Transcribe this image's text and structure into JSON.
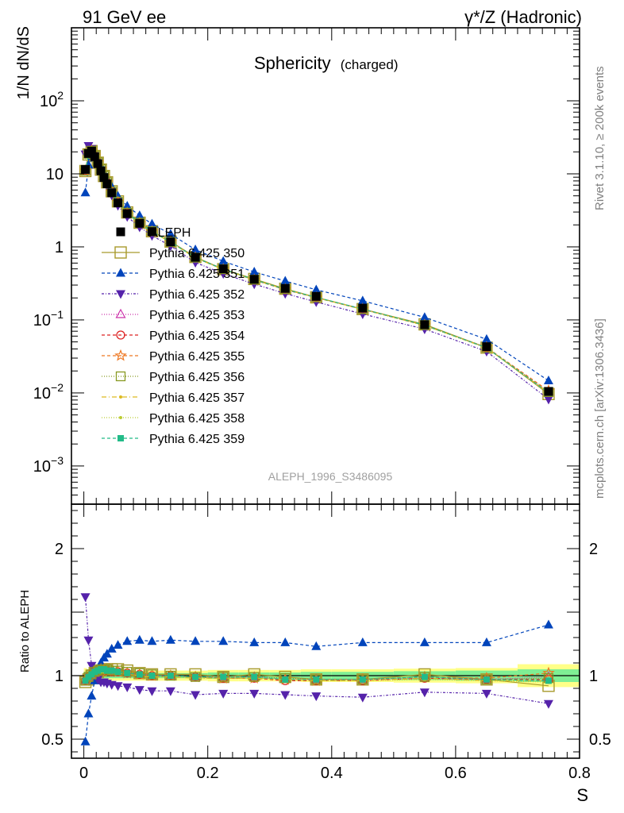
{
  "header": {
    "left": "91 GeV ee",
    "right": "γ*/Z (Hadronic)"
  },
  "side": {
    "rivet": "Rivet 3.1.10, ≥ 200k events",
    "mcplots": "mcplots.cern.ch [arXiv:1306.3436]"
  },
  "chart_data": [
    {
      "type": "scatter",
      "title": "Sphericity",
      "title_suffix": "(charged)",
      "ylabel": "1/N dN/dS",
      "xlabel": "S",
      "watermark": "ALEPH_1996_S3486095",
      "xlim": [
        -0.02,
        0.8
      ],
      "ylim": [
        0.0003,
        1000
      ],
      "y_scale": "log",
      "y_ticks": [
        {
          "value": 0.001,
          "label": "10^-3"
        },
        {
          "value": 0.01,
          "label": "10^-2"
        },
        {
          "value": 0.1,
          "label": "10^-1"
        },
        {
          "value": 1,
          "label": "1"
        },
        {
          "value": 10,
          "label": "10"
        },
        {
          "value": 100,
          "label": "10^2"
        }
      ],
      "legend_position": "middle-left",
      "x": [
        0.0025,
        0.0075,
        0.0125,
        0.0175,
        0.0225,
        0.0275,
        0.0325,
        0.0375,
        0.045,
        0.055,
        0.07,
        0.09,
        0.11,
        0.14,
        0.18,
        0.225,
        0.275,
        0.325,
        0.375,
        0.45,
        0.55,
        0.65,
        0.75
      ],
      "series": [
        {
          "name": "ALEPH",
          "color": "#000000",
          "marker": "square-filled",
          "dash": "",
          "values": [
            11.5,
            19.0,
            20.5,
            17.2,
            13.8,
            11.0,
            8.9,
            7.3,
            5.5,
            4.0,
            2.85,
            2.1,
            1.62,
            1.17,
            0.72,
            0.5,
            0.36,
            0.27,
            0.21,
            0.145,
            0.086,
            0.043,
            0.0105
          ]
        },
        {
          "name": "Pythia 6.425 350",
          "color": "#a89a2c",
          "marker": "square-open-big",
          "dash": "",
          "ratio": [
            0.95,
            0.97,
            1.0,
            1.02,
            1.03,
            1.04,
            1.05,
            1.05,
            1.05,
            1.05,
            1.04,
            1.02,
            1.01,
            1.01,
            1.01,
            0.99,
            1.01,
            0.99,
            0.97,
            0.97,
            1.01,
            0.97,
            0.92
          ]
        },
        {
          "name": "Pythia 6.425 351",
          "color": "#0044bb",
          "marker": "triangle-up-filled",
          "dash": "4,3",
          "ratio": [
            0.48,
            0.7,
            0.84,
            0.96,
            1.05,
            1.1,
            1.14,
            1.17,
            1.21,
            1.24,
            1.27,
            1.28,
            1.27,
            1.28,
            1.27,
            1.27,
            1.26,
            1.26,
            1.23,
            1.26,
            1.26,
            1.26,
            1.4
          ]
        },
        {
          "name": "Pythia 6.425 352",
          "color": "#5522aa",
          "marker": "triangle-down-filled",
          "dash": "3,2,1,2",
          "ratio": [
            1.62,
            1.28,
            1.08,
            1.01,
            0.97,
            0.95,
            0.95,
            0.94,
            0.93,
            0.92,
            0.91,
            0.89,
            0.88,
            0.88,
            0.85,
            0.86,
            0.86,
            0.85,
            0.84,
            0.83,
            0.87,
            0.86,
            0.78
          ]
        },
        {
          "name": "Pythia 6.425 353",
          "color": "#cc33aa",
          "marker": "triangle-up-open",
          "dash": "1,2",
          "ratio": [
            0.96,
            0.99,
            1.01,
            1.02,
            1.03,
            1.04,
            1.04,
            1.04,
            1.04,
            1.03,
            1.02,
            1.01,
            1.0,
            1.0,
            0.99,
            0.99,
            0.99,
            0.97,
            0.97,
            0.97,
            0.98,
            0.97,
            0.99
          ]
        },
        {
          "name": "Pythia 6.425 354",
          "color": "#dd2222",
          "marker": "circle-open",
          "dash": "4,3",
          "ratio": [
            0.96,
            0.99,
            1.01,
            1.03,
            1.04,
            1.04,
            1.04,
            1.04,
            1.03,
            1.03,
            1.02,
            1.01,
            1.0,
            1.0,
            0.99,
            0.98,
            0.98,
            0.96,
            0.96,
            0.96,
            0.98,
            0.97,
            0.97
          ]
        },
        {
          "name": "Pythia 6.425 355",
          "color": "#ee7722",
          "marker": "star-open",
          "dash": "4,3",
          "ratio": [
            0.96,
            0.99,
            1.01,
            1.03,
            1.04,
            1.05,
            1.05,
            1.04,
            1.04,
            1.03,
            1.02,
            1.01,
            1.0,
            1.0,
            0.99,
            0.98,
            0.98,
            0.97,
            0.96,
            0.97,
            0.99,
            0.98,
            1.02
          ]
        },
        {
          "name": "Pythia 6.425 356",
          "color": "#889922",
          "marker": "square-open",
          "dash": "1,2",
          "ratio": [
            0.96,
            0.99,
            1.01,
            1.03,
            1.04,
            1.05,
            1.05,
            1.05,
            1.04,
            1.04,
            1.03,
            1.02,
            1.01,
            1.0,
            0.99,
            0.99,
            0.99,
            0.98,
            0.97,
            0.97,
            0.99,
            0.97,
            0.98
          ]
        },
        {
          "name": "Pythia 6.425 357",
          "color": "#ddbb22",
          "marker": "dot",
          "dash": "6,3,1,3",
          "ratio": [
            0.97,
            0.99,
            1.01,
            1.02,
            1.03,
            1.03,
            1.03,
            1.03,
            1.03,
            1.02,
            1.01,
            1.0,
            0.99,
            0.99,
            0.98,
            0.98,
            0.98,
            0.97,
            0.96,
            0.96,
            0.98,
            0.96,
            0.96
          ]
        },
        {
          "name": "Pythia 6.425 358",
          "color": "#bbcc33",
          "marker": "dot",
          "dash": "1,2",
          "ratio": [
            0.97,
            0.99,
            1.01,
            1.02,
            1.03,
            1.03,
            1.03,
            1.03,
            1.03,
            1.02,
            1.01,
            1.0,
            0.99,
            0.99,
            0.98,
            0.98,
            0.98,
            0.97,
            0.96,
            0.96,
            0.97,
            0.96,
            0.95
          ]
        },
        {
          "name": "Pythia 6.425 359",
          "color": "#22bb88",
          "marker": "square-filled-small",
          "dash": "4,3",
          "ratio": [
            0.96,
            0.99,
            1.01,
            1.03,
            1.04,
            1.05,
            1.05,
            1.04,
            1.04,
            1.03,
            1.02,
            1.01,
            1.0,
            1.0,
            0.99,
            0.99,
            0.99,
            0.97,
            0.97,
            0.97,
            0.99,
            0.97,
            0.96
          ]
        }
      ]
    },
    {
      "type": "scatter",
      "ylabel": "Ratio to ALEPH",
      "xlabel": "S",
      "xlim": [
        -0.02,
        0.8
      ],
      "ylim": [
        0.35,
        2.35
      ],
      "y_ticks": [
        {
          "value": 0.5,
          "label": "0.5"
        },
        {
          "value": 1,
          "label": "1"
        },
        {
          "value": 2,
          "label": "2"
        }
      ],
      "x_ticks": [
        {
          "value": 0,
          "label": "0"
        },
        {
          "value": 0.2,
          "label": "0.2"
        },
        {
          "value": 0.4,
          "label": "0.4"
        },
        {
          "value": 0.6,
          "label": "0.6"
        },
        {
          "value": 0.8,
          "label": "0.8"
        }
      ],
      "band_x_edges": [
        0,
        0.005,
        0.01,
        0.015,
        0.02,
        0.025,
        0.03,
        0.035,
        0.04,
        0.05,
        0.06,
        0.08,
        0.1,
        0.12,
        0.16,
        0.2,
        0.25,
        0.3,
        0.35,
        0.4,
        0.5,
        0.6,
        0.7,
        0.8
      ],
      "band_stat": [
        0.03,
        0.025,
        0.02,
        0.02,
        0.02,
        0.02,
        0.02,
        0.02,
        0.02,
        0.02,
        0.02,
        0.02,
        0.02,
        0.02,
        0.02,
        0.025,
        0.025,
        0.025,
        0.03,
        0.03,
        0.035,
        0.04,
        0.05
      ],
      "band_total": [
        0.06,
        0.05,
        0.045,
        0.04,
        0.04,
        0.04,
        0.04,
        0.04,
        0.04,
        0.04,
        0.04,
        0.04,
        0.04,
        0.04,
        0.04,
        0.045,
        0.045,
        0.045,
        0.05,
        0.05,
        0.055,
        0.06,
        0.09
      ]
    }
  ]
}
